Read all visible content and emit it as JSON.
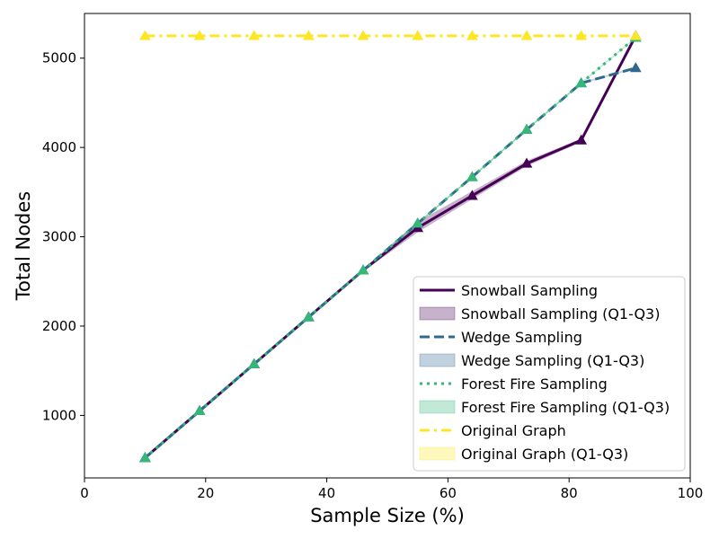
{
  "chart_data": {
    "type": "line",
    "title": "",
    "xlabel": "Sample Size (%)",
    "ylabel": "Total Nodes",
    "xlim": [
      0,
      100
    ],
    "ylim": [
      300,
      5500
    ],
    "xticks": [
      0,
      20,
      40,
      60,
      80,
      100
    ],
    "yticks": [
      1000,
      2000,
      3000,
      4000,
      5000
    ],
    "grid": false,
    "legend_position": "lower-right",
    "x": [
      10,
      19,
      28,
      37,
      46,
      55,
      64,
      73,
      82,
      91
    ],
    "series": [
      {
        "name": "Snowball Sampling",
        "band_name": "Snowball Sampling (Q1-Q3)",
        "color": "#440154",
        "linestyle": "solid",
        "values": [
          525,
          1050,
          1575,
          2100,
          2625,
          3100,
          3460,
          3820,
          4080,
          5250
        ],
        "q1": [
          520,
          1045,
          1570,
          2095,
          2610,
          3050,
          3420,
          3790,
          4060,
          5240
        ],
        "q3": [
          530,
          1055,
          1580,
          2105,
          2640,
          3170,
          3510,
          3850,
          4100,
          5255
        ]
      },
      {
        "name": "Wedge Sampling",
        "band_name": "Wedge Sampling (Q1-Q3)",
        "color": "#31688e",
        "linestyle": "dashed",
        "values": [
          525,
          1050,
          1575,
          2100,
          2625,
          3150,
          3670,
          4200,
          4720,
          4890
        ],
        "q1": [
          520,
          1045,
          1570,
          2095,
          2620,
          3140,
          3660,
          4190,
          4710,
          4880
        ],
        "q3": [
          530,
          1055,
          1580,
          2105,
          2630,
          3160,
          3680,
          4210,
          4730,
          4900
        ]
      },
      {
        "name": "Forest Fire Sampling",
        "band_name": "Forest Fire Sampling (Q1-Q3)",
        "color": "#35b779",
        "linestyle": "dotted",
        "values": [
          525,
          1050,
          1575,
          2100,
          2625,
          3150,
          3670,
          4200,
          4720,
          5230
        ],
        "q1": [
          520,
          1045,
          1570,
          2095,
          2620,
          3140,
          3660,
          4190,
          4710,
          5220
        ],
        "q3": [
          530,
          1055,
          1580,
          2105,
          2630,
          3160,
          3680,
          4210,
          4730,
          5240
        ]
      },
      {
        "name": "Original Graph",
        "band_name": "Original Graph (Q1-Q3)",
        "color": "#fde725",
        "linestyle": "dashdot",
        "values": [
          5250,
          5250,
          5250,
          5250,
          5250,
          5250,
          5250,
          5250,
          5250,
          5250
        ],
        "q1": [
          5250,
          5250,
          5250,
          5250,
          5250,
          5250,
          5250,
          5250,
          5250,
          5250
        ],
        "q3": [
          5250,
          5250,
          5250,
          5250,
          5250,
          5250,
          5250,
          5250,
          5250,
          5250
        ]
      }
    ],
    "marker": "triangle"
  }
}
